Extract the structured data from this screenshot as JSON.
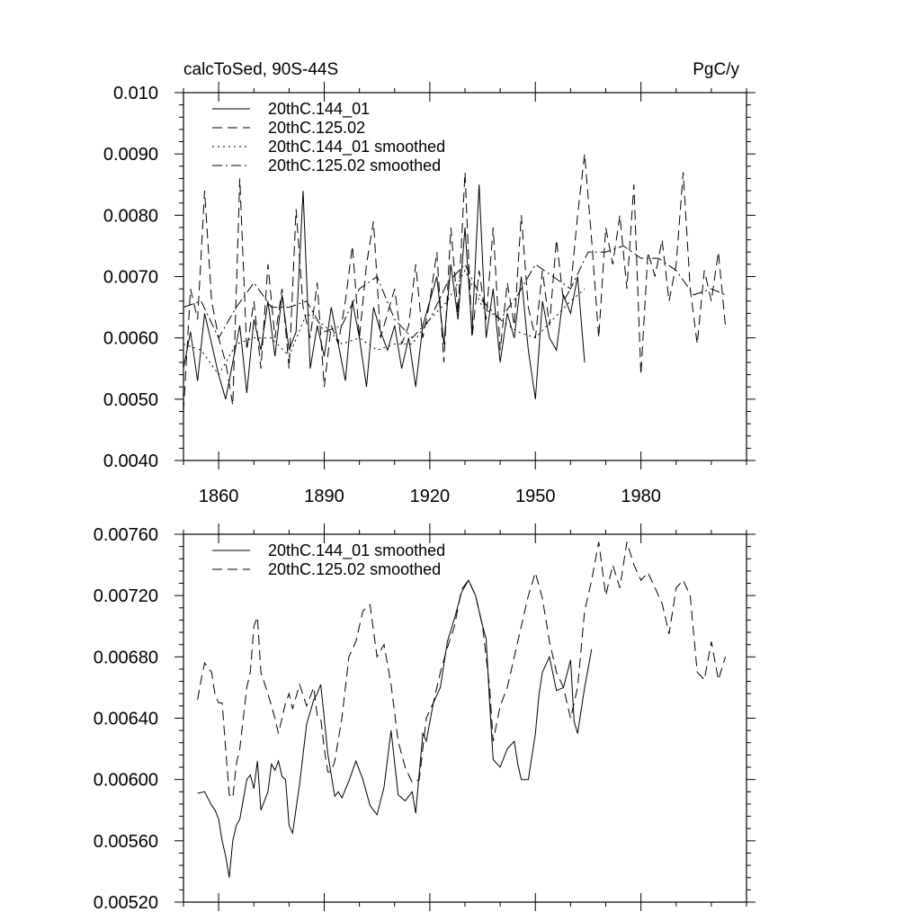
{
  "chart_data": [
    {
      "type": "line",
      "title": "calcToSed, 90S-44S",
      "units": "PgC/y",
      "xlim": [
        1850,
        2010
      ],
      "ylim": [
        0.004,
        0.01
      ],
      "x_ticks": [
        1860,
        1890,
        1920,
        1950,
        1980
      ],
      "x_tick_labels": [
        "1860",
        "1890",
        "1920",
        "1950",
        "1980"
      ],
      "y_ticks": [
        0.004,
        0.005,
        0.006,
        0.007,
        0.008,
        0.009,
        0.01
      ],
      "y_tick_labels": [
        "0.0040",
        "0.0050",
        "0.0060",
        "0.0070",
        "0.0080",
        "0.0090",
        "0.010"
      ],
      "legend_position": "top-left",
      "series": [
        {
          "name": "20thC.144_01",
          "dash": "solid",
          "x": [
            1850,
            1852,
            1854,
            1856,
            1858,
            1860,
            1862,
            1864,
            1866,
            1868,
            1870,
            1872,
            1874,
            1876,
            1878,
            1880,
            1882,
            1884,
            1886,
            1888,
            1890,
            1892,
            1894,
            1896,
            1898,
            1900,
            1902,
            1904,
            1906,
            1908,
            1910,
            1912,
            1914,
            1916,
            1918,
            1920,
            1922,
            1924,
            1926,
            1928,
            1930,
            1932,
            1934,
            1936,
            1938,
            1940,
            1942,
            1944,
            1946,
            1948,
            1950,
            1952,
            1954,
            1956,
            1958,
            1960,
            1962,
            1964
          ],
          "values": [
            0.0055,
            0.0061,
            0.0053,
            0.0064,
            0.0059,
            0.0054,
            0.005,
            0.0056,
            0.0062,
            0.0051,
            0.0063,
            0.0058,
            0.0066,
            0.0057,
            0.0067,
            0.0058,
            0.0061,
            0.0084,
            0.0055,
            0.0062,
            0.0057,
            0.0065,
            0.0059,
            0.0053,
            0.0066,
            0.006,
            0.0052,
            0.0065,
            0.0061,
            0.0058,
            0.0062,
            0.0055,
            0.006,
            0.0052,
            0.0062,
            0.0066,
            0.007,
            0.0059,
            0.0072,
            0.0063,
            0.0078,
            0.0061,
            0.0085,
            0.006,
            0.0068,
            0.0056,
            0.0064,
            0.006,
            0.007,
            0.0058,
            0.005,
            0.0066,
            0.006,
            0.0058,
            0.0067,
            0.0064,
            0.007,
            0.0056
          ]
        },
        {
          "name": "20thC.125.02",
          "dash": "dashed",
          "x": [
            1850,
            1852,
            1854,
            1856,
            1858,
            1860,
            1862,
            1864,
            1866,
            1868,
            1870,
            1872,
            1874,
            1876,
            1878,
            1880,
            1882,
            1884,
            1886,
            1888,
            1890,
            1892,
            1894,
            1896,
            1898,
            1900,
            1902,
            1904,
            1906,
            1908,
            1910,
            1912,
            1914,
            1916,
            1918,
            1920,
            1922,
            1924,
            1926,
            1928,
            1930,
            1932,
            1934,
            1936,
            1938,
            1940,
            1942,
            1944,
            1946,
            1948,
            1950,
            1952,
            1954,
            1956,
            1958,
            1960,
            1962,
            1964,
            1966,
            1968,
            1970,
            1972,
            1974,
            1976,
            1978,
            1980,
            1982,
            1984,
            1986,
            1988,
            1990,
            1992,
            1994,
            1996,
            1998,
            2000,
            2002,
            2004
          ],
          "values": [
            0.0048,
            0.0068,
            0.0063,
            0.0084,
            0.0066,
            0.006,
            0.0056,
            0.0049,
            0.0086,
            0.0058,
            0.0066,
            0.0055,
            0.0072,
            0.006,
            0.0068,
            0.0055,
            0.0081,
            0.0065,
            0.006,
            0.0069,
            0.0052,
            0.0062,
            0.0059,
            0.0066,
            0.0075,
            0.006,
            0.0072,
            0.0079,
            0.006,
            0.0064,
            0.0068,
            0.0059,
            0.0062,
            0.0072,
            0.006,
            0.0066,
            0.0074,
            0.0056,
            0.0078,
            0.0064,
            0.0087,
            0.006,
            0.0071,
            0.0063,
            0.0078,
            0.0058,
            0.0069,
            0.0062,
            0.008,
            0.0065,
            0.006,
            0.0071,
            0.0062,
            0.0076,
            0.0066,
            0.0068,
            0.008,
            0.009,
            0.0076,
            0.006,
            0.0078,
            0.0072,
            0.008,
            0.0068,
            0.0085,
            0.0054,
            0.0074,
            0.007,
            0.0076,
            0.0066,
            0.0072,
            0.0087,
            0.0068,
            0.0059,
            0.0071,
            0.0066,
            0.0074,
            0.0062
          ]
        },
        {
          "name": "20thC.144_01 smoothed",
          "dash": "dotted",
          "x": [
            1850,
            1855,
            1860,
            1865,
            1870,
            1875,
            1880,
            1885,
            1890,
            1895,
            1900,
            1905,
            1910,
            1915,
            1920,
            1925,
            1930,
            1935,
            1940,
            1945,
            1950,
            1955,
            1960,
            1964
          ],
          "values": [
            0.0059,
            0.0058,
            0.0054,
            0.0059,
            0.006,
            0.006,
            0.0057,
            0.0064,
            0.0062,
            0.0059,
            0.006,
            0.0058,
            0.0059,
            0.0059,
            0.0063,
            0.0066,
            0.0071,
            0.0065,
            0.0063,
            0.0061,
            0.006,
            0.0063,
            0.0066,
            0.0068
          ]
        },
        {
          "name": "20thC.125.02 smoothed",
          "dash": "dashdot",
          "x": [
            1850,
            1855,
            1860,
            1865,
            1870,
            1875,
            1880,
            1885,
            1890,
            1895,
            1900,
            1905,
            1910,
            1915,
            1920,
            1925,
            1930,
            1935,
            1940,
            1945,
            1950,
            1955,
            1960,
            1965,
            1970,
            1975,
            1980,
            1985,
            1990,
            1995,
            2000,
            2004
          ],
          "values": [
            0.0065,
            0.0066,
            0.006,
            0.0065,
            0.0069,
            0.0065,
            0.0065,
            0.0066,
            0.0061,
            0.0062,
            0.0068,
            0.007,
            0.0063,
            0.006,
            0.0063,
            0.0069,
            0.0072,
            0.0066,
            0.0063,
            0.0067,
            0.0072,
            0.007,
            0.0068,
            0.0074,
            0.0074,
            0.0075,
            0.0073,
            0.0073,
            0.0071,
            0.0067,
            0.0068,
            0.0067
          ]
        }
      ]
    },
    {
      "type": "line",
      "xlim": [
        1850,
        2010
      ],
      "ylim": [
        0.0052,
        0.0076
      ],
      "x_ticks": [
        1860,
        1890,
        1920,
        1950,
        1980
      ],
      "y_ticks": [
        0.0052,
        0.0056,
        0.006,
        0.0064,
        0.0068,
        0.0072,
        0.0076
      ],
      "y_tick_labels": [
        "0.00520",
        "0.00560",
        "0.00600",
        "0.00640",
        "0.00680",
        "0.00720",
        "0.00760"
      ],
      "legend_position": "top-left",
      "series": [
        {
          "name": "20thC.144_01 smoothed",
          "dash": "solid",
          "x": [
            1854,
            1856,
            1858,
            1859,
            1860,
            1861,
            1862,
            1863,
            1864,
            1865,
            1866,
            1868,
            1869,
            1870,
            1871,
            1872,
            1874,
            1875,
            1876,
            1877,
            1878,
            1879,
            1880,
            1881,
            1883,
            1885,
            1887,
            1888,
            1889,
            1890,
            1891,
            1893,
            1894,
            1895,
            1897,
            1899,
            1901,
            1903,
            1905,
            1907,
            1909,
            1911,
            1913,
            1915,
            1916,
            1918,
            1919,
            1921,
            1923,
            1925,
            1927,
            1929,
            1931,
            1933,
            1935,
            1936,
            1937,
            1938,
            1940,
            1942,
            1944,
            1945,
            1946,
            1948,
            1950,
            1951,
            1952,
            1954,
            1956,
            1958,
            1960,
            1961,
            1962,
            1964,
            1966
          ],
          "values": [
            0.00591,
            0.00592,
            0.00583,
            0.0058,
            0.00574,
            0.0056,
            0.0055,
            0.00536,
            0.0056,
            0.0057,
            0.00574,
            0.006,
            0.00603,
            0.00594,
            0.00612,
            0.0058,
            0.00592,
            0.0061,
            0.00606,
            0.00612,
            0.00602,
            0.006,
            0.0057,
            0.00565,
            0.00597,
            0.00636,
            0.00652,
            0.00656,
            0.00662,
            0.0064,
            0.00617,
            0.00589,
            0.00592,
            0.00588,
            0.00599,
            0.00612,
            0.006,
            0.00583,
            0.00577,
            0.00595,
            0.00632,
            0.0059,
            0.00586,
            0.00592,
            0.00578,
            0.0063,
            0.00625,
            0.0065,
            0.0066,
            0.0069,
            0.00705,
            0.00722,
            0.0073,
            0.0072,
            0.007,
            0.00692,
            0.0065,
            0.00613,
            0.00608,
            0.0062,
            0.00625,
            0.0061,
            0.006,
            0.006,
            0.0063,
            0.00655,
            0.0067,
            0.0068,
            0.00658,
            0.0066,
            0.00678,
            0.00638,
            0.0063,
            0.0066,
            0.00685
          ]
        },
        {
          "name": "20thC.125.02 smoothed",
          "dash": "dashed",
          "x": [
            1854,
            1855,
            1856,
            1858,
            1859,
            1860,
            1861,
            1862,
            1863,
            1864,
            1865,
            1866,
            1867,
            1868,
            1869,
            1870,
            1871,
            1872,
            1874,
            1876,
            1877,
            1878,
            1879,
            1880,
            1881,
            1883,
            1885,
            1887,
            1888,
            1889,
            1890,
            1891,
            1892,
            1893,
            1895,
            1897,
            1899,
            1901,
            1903,
            1905,
            1907,
            1909,
            1911,
            1913,
            1915,
            1917,
            1918,
            1919,
            1921,
            1923,
            1925,
            1927,
            1929,
            1931,
            1933,
            1935,
            1937,
            1938,
            1940,
            1942,
            1944,
            1946,
            1948,
            1950,
            1952,
            1954,
            1956,
            1958,
            1960,
            1962,
            1964,
            1966,
            1968,
            1970,
            1972,
            1974,
            1976,
            1978,
            1980,
            1982,
            1984,
            1986,
            1988,
            1990,
            1992,
            1994,
            1996,
            1998,
            2000,
            2002,
            2004
          ],
          "values": [
            0.00652,
            0.00665,
            0.00676,
            0.0067,
            0.00655,
            0.0065,
            0.0065,
            0.0062,
            0.0059,
            0.00588,
            0.0061,
            0.0062,
            0.0064,
            0.0066,
            0.0067,
            0.007,
            0.00706,
            0.0067,
            0.00656,
            0.0064,
            0.0063,
            0.0064,
            0.0065,
            0.00656,
            0.00646,
            0.00662,
            0.00648,
            0.0066,
            0.00642,
            0.0064,
            0.0062,
            0.00605,
            0.00605,
            0.00612,
            0.0064,
            0.0068,
            0.0069,
            0.0071,
            0.00714,
            0.0068,
            0.00688,
            0.00662,
            0.00625,
            0.00608,
            0.00598,
            0.006,
            0.0062,
            0.0064,
            0.0065,
            0.0067,
            0.00686,
            0.007,
            0.00724,
            0.0073,
            0.0072,
            0.007,
            0.0066,
            0.00625,
            0.00648,
            0.0066,
            0.0068,
            0.007,
            0.0072,
            0.00735,
            0.00718,
            0.0069,
            0.0067,
            0.0066,
            0.0064,
            0.0066,
            0.0071,
            0.0073,
            0.00755,
            0.0072,
            0.0074,
            0.00725,
            0.00755,
            0.0074,
            0.0073,
            0.00735,
            0.00725,
            0.00715,
            0.00695,
            0.00725,
            0.0073,
            0.0072,
            0.0067,
            0.00665,
            0.0069,
            0.00665,
            0.0068
          ]
        }
      ]
    }
  ]
}
